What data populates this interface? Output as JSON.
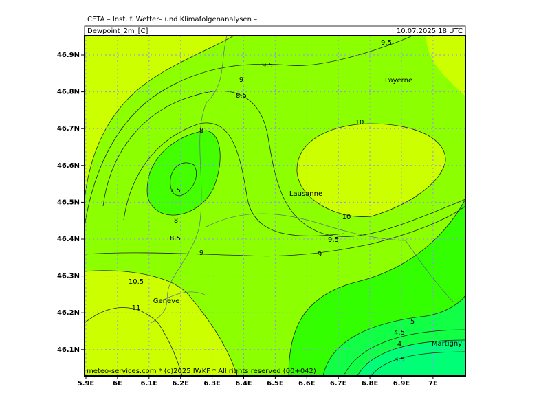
{
  "header": {
    "title": "CETA – Inst. f. Wetter– und Klimafolgenanalysen –",
    "field": "Dewpoint_2m_[C]",
    "valid": "10.07.2025  18 UTC"
  },
  "map": {
    "lat_labels": [
      "46.9N",
      "46.8N",
      "46.7N",
      "46.6N",
      "46.5N",
      "46.4N",
      "46.3N",
      "46.2N",
      "46.1N"
    ],
    "lon_labels": [
      "5.9E",
      "6E",
      "6.1E",
      "6.2E",
      "6.3E",
      "6.4E",
      "6.5E",
      "6.6E",
      "6.7E",
      "6.8E",
      "6.9E",
      "7E"
    ],
    "places": [
      "Payerne",
      "Lausanne",
      "Geneve",
      "Martigny"
    ],
    "contour_labels": [
      9.5,
      9.5,
      9,
      8.5,
      10,
      8,
      7.5,
      8,
      10,
      8.5,
      9.5,
      9,
      9,
      10.5,
      11,
      5,
      4.5,
      4,
      3.5
    ],
    "footer": "meteo-services.com * (c)2025 IWKF * All rights reserved (00+042)"
  }
}
